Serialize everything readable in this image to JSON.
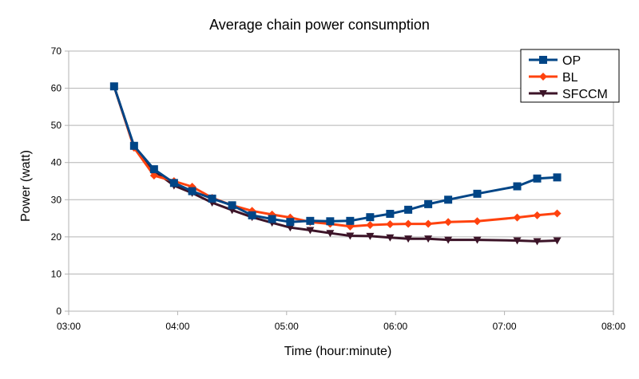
{
  "chart_data": {
    "type": "line",
    "title": "Average chain power consumption",
    "xlabel": "Time (hour:minute)",
    "ylabel": "Power (watt)",
    "x_ticks": [
      "03:00",
      "04:00",
      "05:00",
      "06:00",
      "07:00",
      "08:00"
    ],
    "y_ticks": [
      "0",
      "10",
      "20",
      "30",
      "40",
      "50",
      "60",
      "70"
    ],
    "xlim": [
      "03:00",
      "08:00"
    ],
    "ylim": [
      0,
      70
    ],
    "grid": "horizontal",
    "legend_position": "top-right",
    "series": [
      {
        "name": "OP",
        "color": "#004586",
        "marker": "square",
        "x": [
          "03:25",
          "03:36",
          "03:47",
          "03:58",
          "04:08",
          "04:19",
          "04:30",
          "04:41",
          "04:52",
          "05:02",
          "05:13",
          "05:24",
          "05:35",
          "05:46",
          "05:57",
          "06:07",
          "06:18",
          "06:29",
          "06:45",
          "07:07",
          "07:18",
          "07:29"
        ],
        "y": [
          60.5,
          44.5,
          38.2,
          34.5,
          32.3,
          30.3,
          28.5,
          25.8,
          24.8,
          24.0,
          24.3,
          24.2,
          24.3,
          25.3,
          26.2,
          27.3,
          28.8,
          30.0,
          31.6,
          33.6,
          35.7,
          36.0
        ]
      },
      {
        "name": "BL",
        "color": "#ff420e",
        "marker": "diamond",
        "x": [
          "03:25",
          "03:36",
          "03:47",
          "03:58",
          "04:08",
          "04:19",
          "04:30",
          "04:41",
          "04:52",
          "05:02",
          "05:13",
          "05:24",
          "05:35",
          "05:46",
          "05:57",
          "06:07",
          "06:18",
          "06:29",
          "06:45",
          "07:07",
          "07:18",
          "07:29"
        ],
        "y": [
          60.5,
          44.0,
          36.5,
          35.0,
          33.5,
          30.5,
          28.5,
          27.0,
          26.0,
          25.2,
          24.0,
          23.5,
          22.8,
          23.2,
          23.4,
          23.5,
          23.5,
          24.0,
          24.2,
          25.2,
          25.8,
          26.3
        ]
      },
      {
        "name": "SFCCM",
        "color": "#3c1428",
        "marker": "triangle-down",
        "x": [
          "03:25",
          "03:36",
          "03:47",
          "03:58",
          "04:08",
          "04:19",
          "04:30",
          "04:41",
          "04:52",
          "05:02",
          "05:13",
          "05:24",
          "05:35",
          "05:46",
          "05:57",
          "06:07",
          "06:18",
          "06:29",
          "06:45",
          "07:07",
          "07:18",
          "07:29"
        ],
        "y": [
          60.5,
          44.2,
          37.8,
          33.8,
          31.8,
          29.2,
          27.2,
          25.3,
          23.8,
          22.5,
          21.8,
          21.0,
          20.3,
          20.2,
          19.8,
          19.5,
          19.5,
          19.2,
          19.2,
          19.0,
          18.8,
          19.0
        ]
      }
    ]
  }
}
